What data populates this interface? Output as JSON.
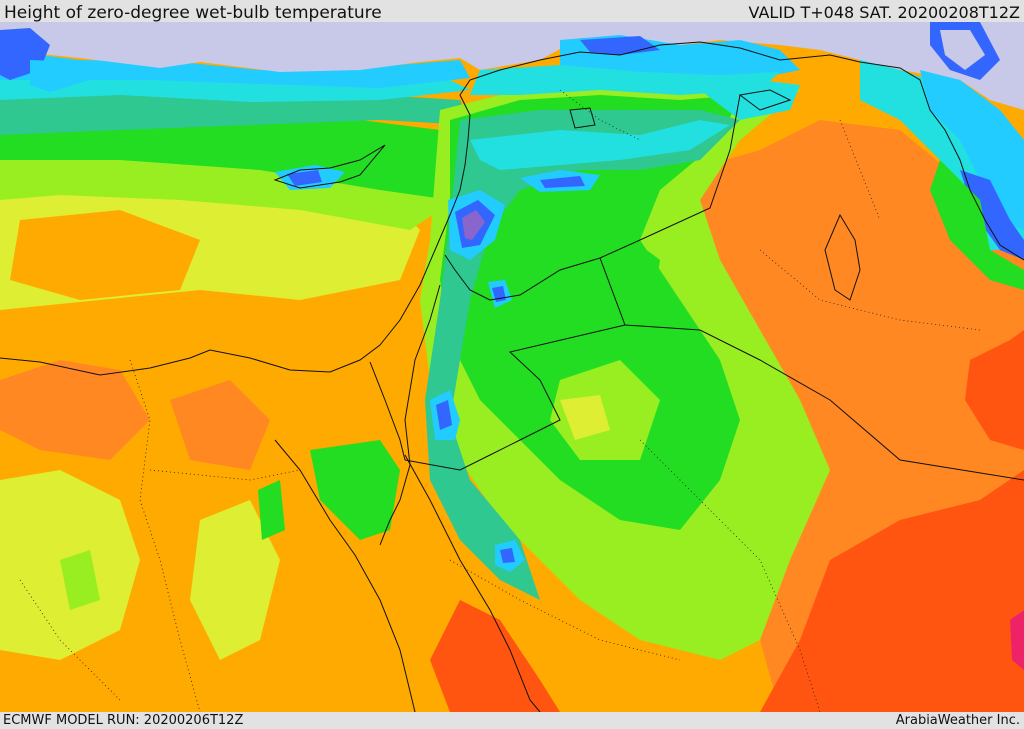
{
  "header": {
    "title": "Height of zero-degree wet-bulb temperature",
    "valid_label": "VALID T+048 SAT. 20200208T12Z"
  },
  "footer": {
    "model_run": "ECMWF MODEL RUN: 20200206T12Z",
    "credit": "ArabiaWeather Inc."
  },
  "palette": {
    "sea_gray": "#c8c8e8",
    "blue": "#3366ff",
    "light_blue": "#22ccff",
    "cyan": "#22e0e0",
    "teal": "#2ec890",
    "green": "#22dd22",
    "light_green": "#99ee22",
    "yellow": "#ddee33",
    "amber": "#ffc000",
    "orange": "#ffaa00",
    "dark_orange": "#ff8822",
    "red_orange": "#ff5511",
    "magenta": "#ee2266",
    "purple": "#8866cc"
  }
}
